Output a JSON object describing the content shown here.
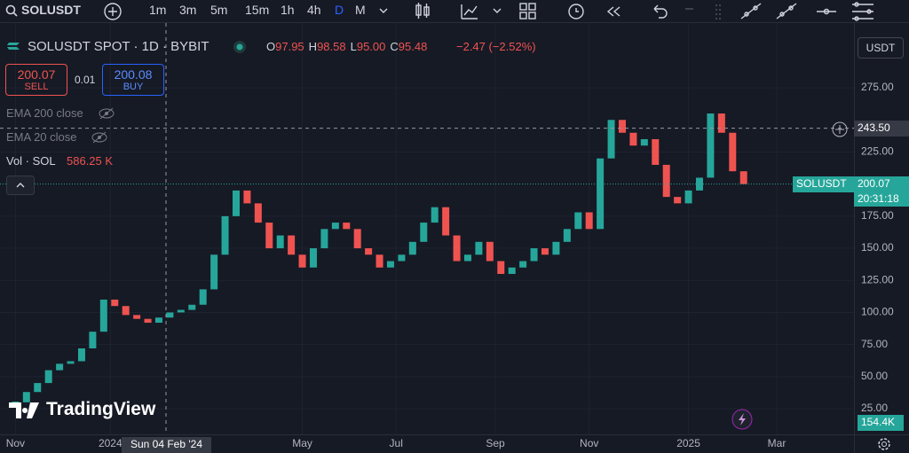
{
  "toolbar": {
    "symbol": "SOLUSDT",
    "intervals": [
      "1m",
      "3m",
      "5m",
      "15m",
      "1h",
      "4h",
      "D",
      "M"
    ]
  },
  "legend": {
    "title": "SOLUSDT SPOT · 1D · BYBIT",
    "ohlc": [
      {
        "k": "O",
        "v": "97.95"
      },
      {
        "k": "H",
        "v": "98.58"
      },
      {
        "k": "L",
        "v": "95.00"
      },
      {
        "k": "C",
        "v": "95.48"
      }
    ],
    "change": "−2.47 (−2.52%)",
    "indicators": [
      "EMA 200 close",
      "EMA 20 close"
    ],
    "volume_label": "Vol · SOL",
    "volume": "586.25 K"
  },
  "trade": {
    "sell_price": "200.07",
    "sell": "SELL",
    "qty": "0.01",
    "buy_price": "200.08",
    "buy": "BUY"
  },
  "currency": "USDT",
  "volume_scale_label": "154.4K",
  "brand": "TradingView",
  "chart_data": {
    "type": "candlestick",
    "values": [
      30,
      38,
      45,
      55,
      60,
      62,
      72,
      85,
      110,
      105,
      98,
      95,
      92,
      96,
      100,
      102,
      106,
      118,
      145,
      175,
      195,
      185,
      170,
      150,
      160,
      145,
      135,
      150,
      165,
      170,
      165,
      150,
      145,
      135,
      140,
      145,
      155,
      170,
      182,
      160,
      140,
      145,
      155,
      140,
      130,
      135,
      140,
      150,
      145,
      155,
      165,
      178,
      165,
      220,
      250,
      240,
      230,
      235,
      215,
      190,
      185,
      195,
      205,
      255,
      240,
      210,
      200
    ],
    "up_color": "#26a69a",
    "down_color": "#ef5350",
    "ylim": [
      5,
      315.8
    ],
    "xlim": [
      -1.4,
      76
    ],
    "yticks": [
      {
        "value": 25,
        "label": "25.00"
      },
      {
        "value": 50,
        "label": "50.00"
      },
      {
        "value": 75,
        "label": "75.00"
      },
      {
        "value": 100,
        "label": "100.00"
      },
      {
        "value": 125,
        "label": "125.00"
      },
      {
        "value": 150,
        "label": "150.00"
      },
      {
        "value": 175,
        "label": "175.00"
      },
      {
        "value": 225,
        "label": "225.00"
      },
      {
        "value": 275,
        "label": "275.00"
      }
    ],
    "xticks": [
      {
        "value": 0,
        "label": "Nov"
      },
      {
        "value": 8.6,
        "label": "2024"
      },
      {
        "value": 26,
        "label": "May"
      },
      {
        "value": 34.5,
        "label": "Jul"
      },
      {
        "value": 43.5,
        "label": "Sep"
      },
      {
        "value": 52,
        "label": "Nov"
      },
      {
        "value": 61,
        "label": "2025"
      },
      {
        "value": 69,
        "label": "Mar"
      }
    ],
    "grid": true,
    "last_price": {
      "value": 200.07,
      "label": "200.07"
    },
    "last_symbol": "SOLUSDT",
    "countdown": "20:31:18",
    "crosshair": {
      "price": {
        "value": 243.5,
        "label": "243.50"
      },
      "date": "Sun 04 Feb '24"
    }
  }
}
